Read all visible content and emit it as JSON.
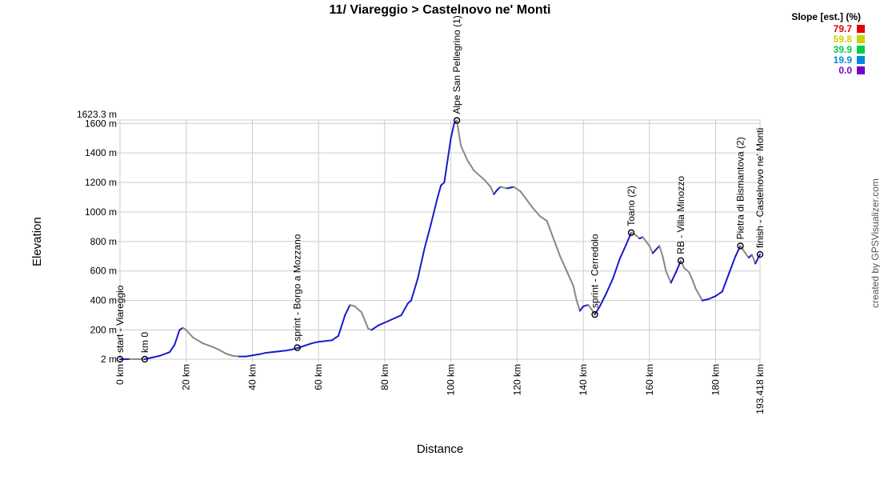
{
  "chart_data": {
    "type": "line",
    "title": "11/ Viareggio > Castelnovo ne' Monti",
    "xlabel": "Distance",
    "ylabel": "Elevation",
    "xlim": [
      0,
      193.418
    ],
    "ylim": [
      2,
      1623.3
    ],
    "x_ticks": [
      {
        "v": 0,
        "label": "0 km"
      },
      {
        "v": 20,
        "label": "20 km"
      },
      {
        "v": 40,
        "label": "40 km"
      },
      {
        "v": 60,
        "label": "60 km"
      },
      {
        "v": 80,
        "label": "80 km"
      },
      {
        "v": 100,
        "label": "100 km"
      },
      {
        "v": 120,
        "label": "120 km"
      },
      {
        "v": 140,
        "label": "140 km"
      },
      {
        "v": 160,
        "label": "160 km"
      },
      {
        "v": 180,
        "label": "180 km"
      },
      {
        "v": 193.418,
        "label": "193.418 km"
      }
    ],
    "y_ticks": [
      {
        "v": 2,
        "label": "2 m"
      },
      {
        "v": 200,
        "label": "200 m"
      },
      {
        "v": 400,
        "label": "400 m"
      },
      {
        "v": 600,
        "label": "600 m"
      },
      {
        "v": 800,
        "label": "800 m"
      },
      {
        "v": 1000,
        "label": "1000 m"
      },
      {
        "v": 1200,
        "label": "1200 m"
      },
      {
        "v": 1400,
        "label": "1400 m"
      },
      {
        "v": 1600,
        "label": "1600 m"
      },
      {
        "v": 1623.3,
        "label": "1623.3 m"
      }
    ],
    "grid": true,
    "profile": [
      [
        0,
        2
      ],
      [
        3,
        3
      ],
      [
        7.5,
        2
      ],
      [
        10,
        15
      ],
      [
        12,
        25
      ],
      [
        15,
        50
      ],
      [
        16.5,
        100
      ],
      [
        18,
        200
      ],
      [
        19,
        215
      ],
      [
        20,
        200
      ],
      [
        22,
        150
      ],
      [
        25,
        110
      ],
      [
        28,
        85
      ],
      [
        30,
        65
      ],
      [
        32,
        40
      ],
      [
        34,
        25
      ],
      [
        36,
        20
      ],
      [
        38,
        20
      ],
      [
        40,
        28
      ],
      [
        42,
        35
      ],
      [
        44,
        45
      ],
      [
        46,
        50
      ],
      [
        48,
        55
      ],
      [
        50,
        60
      ],
      [
        52,
        68
      ],
      [
        54,
        80
      ],
      [
        56,
        95
      ],
      [
        58,
        110
      ],
      [
        60,
        120
      ],
      [
        62,
        125
      ],
      [
        64,
        130
      ],
      [
        66,
        160
      ],
      [
        68,
        300
      ],
      [
        69.5,
        370
      ],
      [
        71,
        360
      ],
      [
        73,
        320
      ],
      [
        75,
        210
      ],
      [
        76,
        200
      ],
      [
        78,
        230
      ],
      [
        80,
        250
      ],
      [
        83,
        280
      ],
      [
        85,
        300
      ],
      [
        87,
        380
      ],
      [
        88,
        400
      ],
      [
        90,
        550
      ],
      [
        92,
        750
      ],
      [
        94,
        920
      ],
      [
        96,
        1100
      ],
      [
        97,
        1180
      ],
      [
        98,
        1200
      ],
      [
        99,
        1350
      ],
      [
        100,
        1500
      ],
      [
        101,
        1600
      ],
      [
        101.8,
        1620
      ],
      [
        103,
        1450
      ],
      [
        105,
        1350
      ],
      [
        107,
        1280
      ],
      [
        110,
        1220
      ],
      [
        112,
        1170
      ],
      [
        113,
        1120
      ],
      [
        114,
        1150
      ],
      [
        115,
        1170
      ],
      [
        117,
        1160
      ],
      [
        119,
        1170
      ],
      [
        121,
        1140
      ],
      [
        123,
        1080
      ],
      [
        125,
        1020
      ],
      [
        127,
        970
      ],
      [
        129,
        940
      ],
      [
        131,
        820
      ],
      [
        133,
        700
      ],
      [
        135,
        600
      ],
      [
        137,
        500
      ],
      [
        138,
        400
      ],
      [
        139,
        330
      ],
      [
        140,
        360
      ],
      [
        141.5,
        370
      ],
      [
        142.5,
        340
      ],
      [
        143.5,
        305
      ],
      [
        145,
        360
      ],
      [
        147,
        450
      ],
      [
        149,
        550
      ],
      [
        151,
        680
      ],
      [
        153,
        780
      ],
      [
        154.5,
        860
      ],
      [
        155.5,
        850
      ],
      [
        157,
        820
      ],
      [
        158,
        830
      ],
      [
        160,
        770
      ],
      [
        161,
        720
      ],
      [
        163,
        770
      ],
      [
        164,
        700
      ],
      [
        165,
        600
      ],
      [
        166.5,
        520
      ],
      [
        168,
        590
      ],
      [
        169.5,
        670
      ],
      [
        170.5,
        620
      ],
      [
        172,
        590
      ],
      [
        173,
        540
      ],
      [
        174,
        480
      ],
      [
        176,
        400
      ],
      [
        178,
        410
      ],
      [
        180,
        430
      ],
      [
        182,
        460
      ],
      [
        184,
        580
      ],
      [
        186,
        700
      ],
      [
        187.5,
        770
      ],
      [
        189,
        720
      ],
      [
        190,
        690
      ],
      [
        191,
        710
      ],
      [
        192,
        650
      ],
      [
        193.418,
        712
      ]
    ],
    "waypoints": [
      {
        "x": 0,
        "y": 2,
        "label": "start - Viareggio"
      },
      {
        "x": 7.5,
        "y": 2,
        "label": "km 0"
      },
      {
        "x": 53.6,
        "y": 80,
        "label": "sprint - Borgo a Mozzano"
      },
      {
        "x": 101.8,
        "y": 1620,
        "label": "Alpe San Pellegrino (1)"
      },
      {
        "x": 143.5,
        "y": 305,
        "label": "sprint - Cerredolo"
      },
      {
        "x": 154.5,
        "y": 860,
        "label": "Toano (2)"
      },
      {
        "x": 169.5,
        "y": 670,
        "label": "RB - Villa Minozzo"
      },
      {
        "x": 187.5,
        "y": 770,
        "label": "Pietra di Bismantova (2)"
      },
      {
        "x": 193.418,
        "y": 712,
        "label": "finish - Castelnovo ne' Monti"
      }
    ],
    "legend": {
      "title": "Slope [est.] (%)",
      "placement": "top-right",
      "items": [
        {
          "value": "79.7",
          "color": "#e00000"
        },
        {
          "value": "59.8",
          "color": "#c8d400"
        },
        {
          "value": "39.9",
          "color": "#00cc44"
        },
        {
          "value": "19.9",
          "color": "#0088dd"
        },
        {
          "value": "0.0",
          "color": "#7700cc"
        }
      ]
    },
    "line_colors": {
      "climb": "#1a1acc",
      "descent": "#888888"
    }
  },
  "credit": "created by GPSVisualizer.com"
}
